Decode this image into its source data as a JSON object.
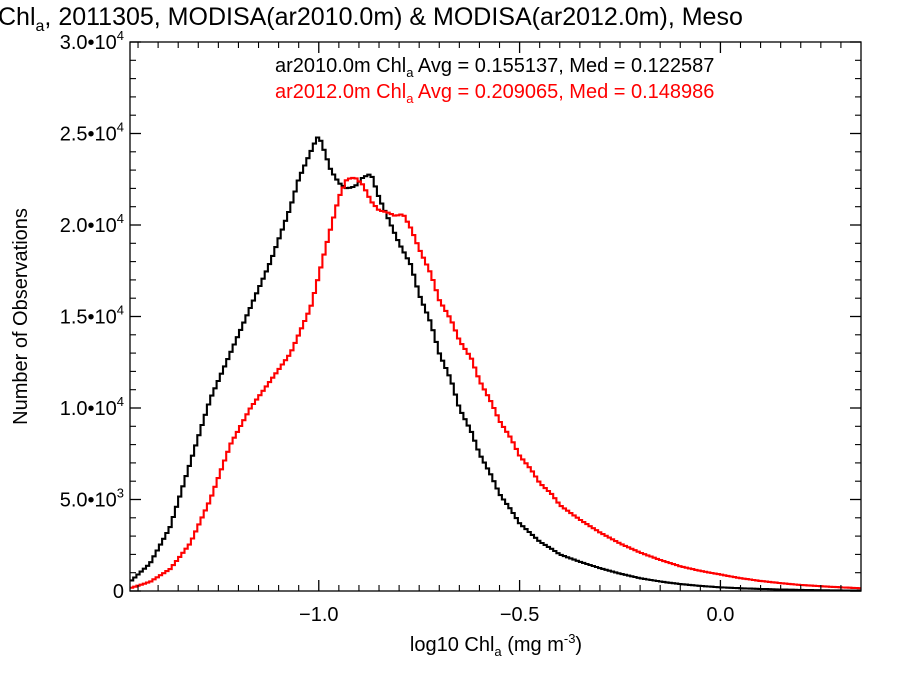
{
  "chart_data": {
    "type": "line",
    "title_parts": [
      "Chl",
      "a",
      ", 2011305, MODISA(ar2010.0m) & MODISA(ar2012.0m), Meso"
    ],
    "xlabel_parts": [
      "log10 Chl",
      "a",
      " (mg m",
      "-3",
      ")"
    ],
    "ylabel": "Number of Observations",
    "xlim": [
      -1.47,
      0.35
    ],
    "ylim": [
      0,
      30000
    ],
    "x_ticks": [
      -1.0,
      -0.5,
      0.0
    ],
    "x_tick_labels": [
      "−1.0",
      "−0.5",
      "0.0"
    ],
    "y_ticks": [
      0,
      5000,
      10000,
      15000,
      20000,
      25000,
      30000
    ],
    "y_tick_labels": [
      {
        "mantissa": "0",
        "exp": ""
      },
      {
        "mantissa": "5.0•10",
        "exp": "3"
      },
      {
        "mantissa": "1.0•10",
        "exp": "4"
      },
      {
        "mantissa": "1.5•10",
        "exp": "4"
      },
      {
        "mantissa": "2.0•10",
        "exp": "4"
      },
      {
        "mantissa": "2.5•10",
        "exp": "4"
      },
      {
        "mantissa": "3.0•10",
        "exp": "4"
      }
    ],
    "step_shape": "histogram",
    "grid": false,
    "series": [
      {
        "color": "#000000",
        "legend_parts": [
          "ar2010.0m Chl",
          "a",
          " Avg = 0.155137, Med = 0.122587"
        ],
        "x": [
          -1.47,
          -1.42,
          -1.37,
          -1.32,
          -1.27,
          -1.22,
          -1.17,
          -1.12,
          -1.07,
          -1.05,
          -1.03,
          -1.01,
          -1.0,
          -0.99,
          -0.97,
          -0.95,
          -0.93,
          -0.91,
          -0.89,
          -0.87,
          -0.85,
          -0.82,
          -0.8,
          -0.77,
          -0.75,
          -0.72,
          -0.7,
          -0.67,
          -0.65,
          -0.62,
          -0.6,
          -0.57,
          -0.55,
          -0.52,
          -0.5,
          -0.47,
          -0.45,
          -0.42,
          -0.4,
          -0.35,
          -0.3,
          -0.25,
          -0.2,
          -0.15,
          -0.1,
          -0.05,
          0.0,
          0.05,
          0.1,
          0.15,
          0.2,
          0.25,
          0.3,
          0.35
        ],
        "y": [
          500,
          1500,
          3500,
          7000,
          10500,
          13000,
          15500,
          18000,
          21000,
          22500,
          23500,
          24500,
          24900,
          24300,
          23000,
          22300,
          22000,
          22100,
          22600,
          22800,
          21500,
          20000,
          19000,
          17800,
          16200,
          14600,
          13000,
          11500,
          10000,
          8700,
          7500,
          6300,
          5300,
          4400,
          3700,
          3100,
          2700,
          2300,
          2000,
          1600,
          1250,
          950,
          700,
          520,
          380,
          280,
          200,
          150,
          110,
          80,
          60,
          40,
          30,
          20
        ]
      },
      {
        "color": "#ff0000",
        "legend_parts": [
          "ar2012.0m Chl",
          "a",
          " Avg = 0.209065, Med = 0.148986"
        ],
        "x": [
          -1.47,
          -1.42,
          -1.37,
          -1.32,
          -1.27,
          -1.22,
          -1.17,
          -1.12,
          -1.07,
          -1.02,
          -0.98,
          -0.95,
          -0.93,
          -0.91,
          -0.89,
          -0.87,
          -0.85,
          -0.83,
          -0.81,
          -0.79,
          -0.77,
          -0.75,
          -0.72,
          -0.7,
          -0.67,
          -0.65,
          -0.62,
          -0.6,
          -0.57,
          -0.55,
          -0.52,
          -0.5,
          -0.47,
          -0.45,
          -0.42,
          -0.4,
          -0.35,
          -0.3,
          -0.25,
          -0.2,
          -0.15,
          -0.1,
          -0.05,
          0.0,
          0.05,
          0.1,
          0.15,
          0.2,
          0.25,
          0.3,
          0.35
        ],
        "y": [
          150,
          500,
          1200,
          2600,
          5000,
          8000,
          10000,
          11500,
          13000,
          15500,
          19000,
          21500,
          22500,
          22600,
          22200,
          21300,
          20800,
          20700,
          20500,
          20600,
          19800,
          18700,
          17300,
          15900,
          14800,
          13700,
          12700,
          11500,
          10300,
          9300,
          8300,
          7400,
          6600,
          5900,
          5300,
          4700,
          3900,
          3200,
          2600,
          2100,
          1700,
          1350,
          1100,
          900,
          700,
          550,
          430,
          330,
          260,
          200,
          150
        ]
      }
    ]
  }
}
